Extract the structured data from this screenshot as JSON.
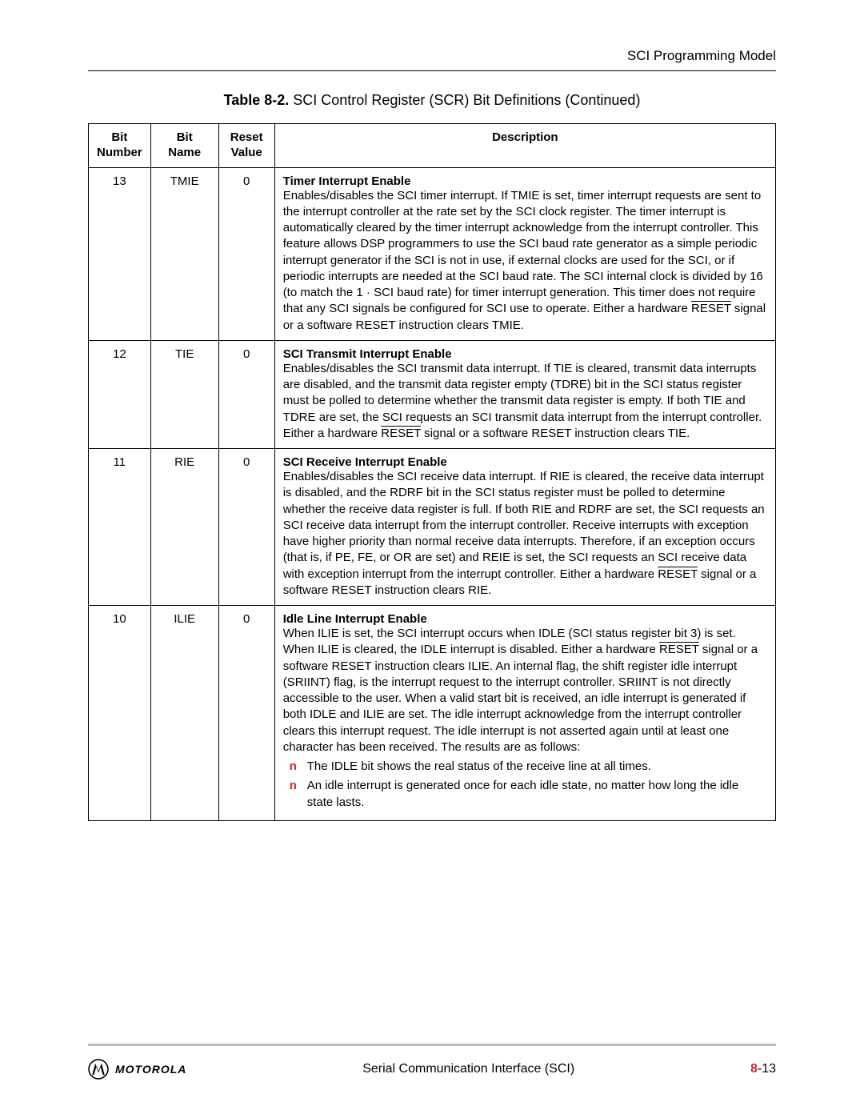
{
  "header": {
    "section": "SCI Programming Model"
  },
  "table_title": {
    "label": "Table 8-2.",
    "text": "SCI Control Register (SCR) Bit Definitions (Continued)"
  },
  "columns": {
    "c0": "Bit Number",
    "c1": "Bit Name",
    "c2": "Reset Value",
    "c3": "Description"
  },
  "rows": [
    {
      "bit": "13",
      "name": "TMIE",
      "reset": "0",
      "title": "Timer Interrupt Enable",
      "body_html": "Enables/disables the SCI timer interrupt. If TMIE is set, timer interrupt requests are sent to the interrupt controller at the rate set by the SCI clock register. The timer interrupt is automatically cleared by the timer interrupt acknowledge from the interrupt controller. This feature allows DSP programmers to use the SCI baud rate generator as a simple periodic interrupt generator if the SCI is not in use, if external clocks are used for the SCI, or if periodic interrupts are needed at the SCI baud rate. The SCI internal clock is divided by 16 (to match the 1 ·  SCI baud rate) for timer interrupt generation. This timer does not require that any SCI signals be configured for SCI use to operate. Either a hardware <span class=\"overline\">RESET</span> signal or a software RESET instruction clears TMIE."
    },
    {
      "bit": "12",
      "name": "TIE",
      "reset": "0",
      "title": "SCI Transmit Interrupt Enable",
      "body_html": "Enables/disables the SCI transmit data interrupt. If TIE is cleared, transmit data interrupts are disabled, and the transmit data register empty (TDRE) bit in the SCI status register must be polled to determine whether the transmit data register is empty. If both TIE and TDRE are set, the SCI requests an SCI transmit data interrupt from the interrupt controller. Either a hardware <span class=\"overline\">RESET</span> signal or a software RESET instruction clears TIE."
    },
    {
      "bit": "11",
      "name": "RIE",
      "reset": "0",
      "title": "SCI Receive Interrupt Enable",
      "body_html": "Enables/disables the SCI receive data interrupt. If RIE is cleared, the receive data interrupt is disabled, and the RDRF bit in the SCI status register must be polled to determine whether the receive data register is full. If both RIE and RDRF are set, the SCI requests an SCI receive data interrupt from the interrupt controller. Receive interrupts with exception have higher priority than normal receive data interrupts. Therefore, if an exception occurs (that is, if PE, FE, or OR are set) and REIE is set, the SCI requests an SCI receive data with exception interrupt from the interrupt controller. Either a hardware <span class=\"overline\">RESET</span> signal or a software RESET instruction clears RIE."
    },
    {
      "bit": "10",
      "name": "ILIE",
      "reset": "0",
      "title": "Idle Line Interrupt Enable",
      "body_html": "When ILIE is set, the SCI interrupt occurs when IDLE (SCI status register bit 3) is set. When ILIE is cleared, the IDLE interrupt is disabled. Either a hardware <span class=\"overline\">RESET</span> signal or a software RESET instruction clears ILIE. An internal flag, the shift register idle interrupt (SRIINT) flag, is the interrupt request to the interrupt controller. SRIINT is not directly accessible to the user. When a valid start bit is received, an idle interrupt is generated if both IDLE and ILIE are set. The idle interrupt acknowledge from the interrupt controller clears this interrupt request. The idle interrupt is not asserted again until at least one character has been received. The results are as follows:",
      "bullets": [
        "The IDLE bit shows the real status of the receive line at all times.",
        "An idle interrupt is generated once for each idle state, no matter how long the idle state lasts."
      ]
    }
  ],
  "footer": {
    "brand": "MOTOROLA",
    "center": "Serial Communication Interface (SCI)",
    "page_chapter": "8",
    "page_sep": "-",
    "page_num": "13"
  },
  "colors": {
    "accent": "#d9262e",
    "divider": "#bdbdbd",
    "text": "#000000",
    "bg": "#ffffff"
  }
}
